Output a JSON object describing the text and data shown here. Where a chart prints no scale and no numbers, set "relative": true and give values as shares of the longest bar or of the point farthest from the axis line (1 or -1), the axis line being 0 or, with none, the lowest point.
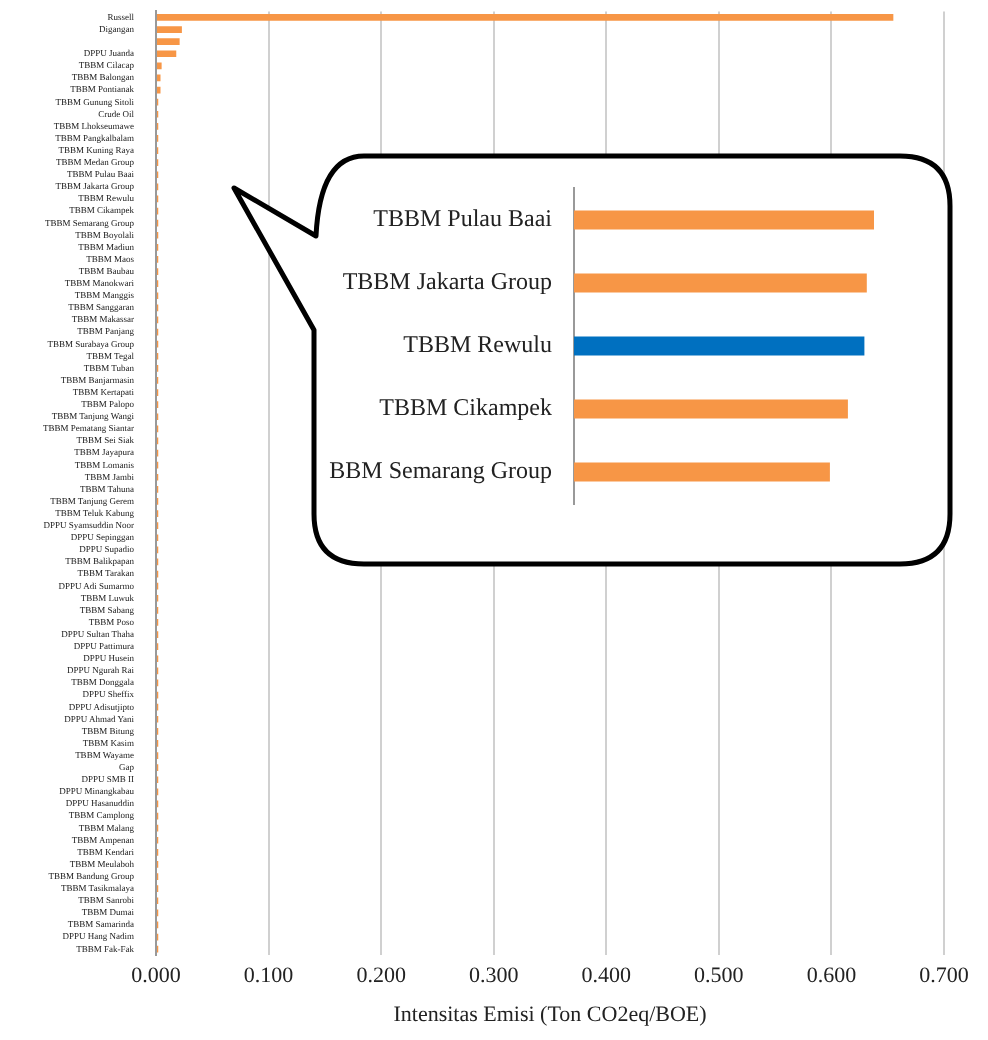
{
  "chart_data": [
    {
      "type": "bar",
      "orientation": "horizontal",
      "xlabel": "Intensitas Emisi (Ton CO2eq/BOE)",
      "categories": [
        "Russell",
        "Digangan",
        null,
        "DPPU Juanda",
        "TBBM Cilacap",
        "TBBM Balongan",
        "TBBM Pontianak",
        "TBBM Gunung Sitoli",
        "Crude Oil",
        "TBBM Lhokseumawe",
        "TBBM Pangkalbalam",
        "TBBM Kuning Raya",
        "TBBM Medan Group",
        "TBBM Pulau Baai",
        "TBBM Jakarta Group",
        "TBBM Rewulu",
        "TBBM Cikampek",
        "TBBM Semarang Group",
        "TBBM Boyolali",
        "TBBM Madiun",
        "TBBM Maos",
        "TBBM Baubau",
        "TBBM Manokwari",
        "TBBM Manggis",
        "TBBM Sanggaran",
        "TBBM Makassar",
        "TBBM Panjang",
        "TBBM Surabaya Group",
        "TBBM Tegal",
        "TBBM Tuban",
        "TBBM Banjarmasin",
        "TBBM Kertapati",
        "TBBM Palopo",
        "TBBM Tanjung Wangi",
        "TBBM Pematang Siantar",
        "TBBM Sei Siak",
        "TBBM Jayapura",
        "TBBM Lomanis",
        "TBBM Jambi",
        "TBBM Tahuna",
        "TBBM Tanjung Gerem",
        "TBBM Teluk Kabung",
        "DPPU Syamsuddin Noor",
        "DPPU Sepinggan",
        "DPPU Supadio",
        "TBBM Balikpapan",
        "TBBM Tarakan",
        "DPPU Adi Sumarmo",
        "TBBM Luwuk",
        "TBBM Sabang",
        "TBBM Poso",
        "DPPU Sultan Thaha",
        "DPPU Pattimura",
        "DPPU Husein",
        "DPPU Ngurah Rai",
        "TBBM Donggala",
        "DPPU Sheffix",
        "DPPU Adisutjipto",
        "DPPU Ahmad Yani",
        "TBBM Bitung",
        "TBBM Kasim",
        "TBBM Wayame",
        "Gap",
        "DPPU SMB II",
        "DPPU Minangkabau",
        "DPPU Hasanuddin",
        "TBBM Camplong",
        "TBBM Malang",
        "TBBM Ampenan",
        "TBBM Kendari",
        "TBBM Meulaboh",
        "TBBM Bandung Group",
        "TBBM Tasikmalaya",
        "TBBM Sanrobi",
        "TBBM Dumai",
        "TBBM Samarinda",
        "DPPU Hang Nadim",
        "TBBM Fak-Fak"
      ],
      "values": [
        0.655,
        0.023,
        0.021,
        0.018,
        0.005,
        0.004,
        0.004,
        0.002,
        0.002,
        0.002,
        0.002,
        0.002,
        0.002,
        0.002,
        0.002,
        0.002,
        0.002,
        0.002,
        0.002,
        0.002,
        0.002,
        0.002,
        0.002,
        0.002,
        0.002,
        0.002,
        0.002,
        0.002,
        0.002,
        0.002,
        0.002,
        0.002,
        0.002,
        0.002,
        0.002,
        0.002,
        0.002,
        0.002,
        0.002,
        0.002,
        0.002,
        0.002,
        0.002,
        0.002,
        0.002,
        0.002,
        0.002,
        0.002,
        0.002,
        0.002,
        0.002,
        0.002,
        0.002,
        0.002,
        0.002,
        0.002,
        0.002,
        0.002,
        0.002,
        0.002,
        0.002,
        0.002,
        0.002,
        0.002,
        0.002,
        0.002,
        0.002,
        0.002,
        0.002,
        0.002,
        0.002,
        0.002,
        0.002,
        0.002,
        0.002,
        0.002,
        0.002,
        0.002
      ],
      "color": "#f79646",
      "xlim": [
        0,
        0.7
      ],
      "xticks": [
        {
          "value": 0,
          "label": "0.000"
        },
        {
          "value": 0.1,
          "label": "0.100"
        },
        {
          "value": 0.2,
          "label": "0.200"
        },
        {
          "value": 0.3,
          "label": "0.300"
        },
        {
          "value": 0.4,
          "label": "0.400"
        },
        {
          "value": 0.5,
          "label": "0.500"
        },
        {
          "value": 0.6,
          "label": "0.600"
        },
        {
          "value": 0.7,
          "label": "0.700"
        }
      ],
      "grid": "x"
    },
    {
      "type": "bar",
      "orientation": "horizontal",
      "relative": true,
      "categories": [
        "TBBM Pulau Baai",
        "TBBM Jakarta Group",
        "TBBM Rewulu",
        "TBBM Cikampek",
        "BBM Semarang Group"
      ],
      "values": [
        1,
        0.976,
        0.968,
        0.913,
        0.853
      ],
      "colors": [
        "#f79646",
        "#f79646",
        "#0070c0",
        "#f79646",
        "#f79646"
      ]
    }
  ]
}
